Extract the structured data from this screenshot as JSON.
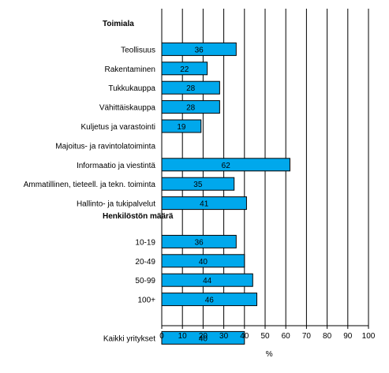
{
  "chart_data": {
    "type": "bar",
    "orientation": "horizontal",
    "xlabel": "%",
    "xlim": [
      0,
      100
    ],
    "xticks": [
      0,
      10,
      20,
      30,
      40,
      50,
      60,
      70,
      80,
      90,
      100
    ],
    "grid": true,
    "bar_color": "#00A8EC",
    "rows": [
      {
        "kind": "header",
        "label": "Toimiala"
      },
      {
        "kind": "bar",
        "label": "Teollisuus",
        "value": 36
      },
      {
        "kind": "bar",
        "label": "Rakentaminen",
        "value": 22
      },
      {
        "kind": "bar",
        "label": "Tukkukauppa",
        "value": 28
      },
      {
        "kind": "bar",
        "label": "Vähittäiskauppa",
        "value": 28
      },
      {
        "kind": "bar",
        "label": "Kuljetus ja varastointi",
        "value": 19
      },
      {
        "kind": "bar",
        "label": "Majoitus- ja ravintolatoiminta",
        "value": null
      },
      {
        "kind": "bar",
        "label": "Informaatio ja viestintä",
        "value": 62
      },
      {
        "kind": "bar",
        "label": "Ammatillinen, tieteell. ja tekn. toiminta",
        "value": 35
      },
      {
        "kind": "bar",
        "label": "Hallinto- ja tukipalvelut",
        "value": 41
      },
      {
        "kind": "header",
        "label": "Henkilöstön määrä"
      },
      {
        "kind": "bar",
        "label": "10-19",
        "value": 36
      },
      {
        "kind": "bar",
        "label": "20-49",
        "value": 40
      },
      {
        "kind": "bar",
        "label": "50-99",
        "value": 44
      },
      {
        "kind": "bar",
        "label": "100+",
        "value": 46
      },
      {
        "kind": "gap"
      },
      {
        "kind": "bar",
        "label": "Kaikki yritykset",
        "value": 40
      }
    ]
  }
}
